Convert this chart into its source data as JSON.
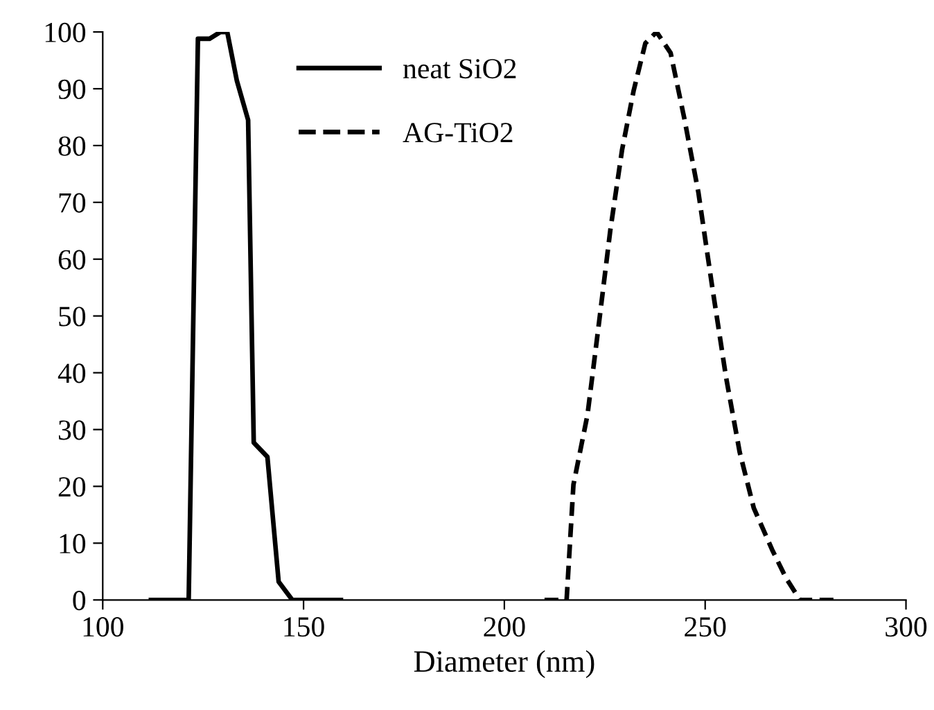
{
  "chart_data": {
    "type": "line",
    "xlabel": "Diameter (nm)",
    "xlim": [
      100,
      300
    ],
    "xticks": [
      100,
      150,
      200,
      250,
      300
    ],
    "ylim": [
      0,
      100
    ],
    "yticks": [
      0,
      10,
      20,
      30,
      40,
      50,
      60,
      70,
      80,
      90,
      100
    ],
    "grid": false,
    "legend": "top",
    "marker": "none",
    "series": [
      {
        "name": "neat SiO2",
        "color": "#000000",
        "line_style": "solid",
        "x": [
          112,
          120.7,
          121.4,
          123.7,
          126.6,
          129.3,
          131,
          133.4,
          136.2,
          137.6,
          141,
          143.8,
          147.2,
          159.3
        ],
        "values": [
          0,
          0,
          0,
          98.8,
          98.8,
          100,
          100,
          91.4,
          84.5,
          27.7,
          25.2,
          3.2,
          0,
          0
        ]
      },
      {
        "name": "AG-TiO2",
        "color": "#000000",
        "line_style": "dashed",
        "x": [
          210,
          215.5,
          217.2,
          220.7,
          223.6,
          226.4,
          229.3,
          232.2,
          235.1,
          237.9,
          241.4,
          244.8,
          248.3,
          251.7,
          255.2,
          258.6,
          262.1,
          266.7,
          270.1,
          273.6,
          282.8
        ],
        "values": [
          0,
          0,
          20.3,
          32.6,
          49,
          65.2,
          79.2,
          89.7,
          98,
          100,
          96.3,
          84.8,
          71.8,
          55.4,
          39.2,
          26,
          16.2,
          8.8,
          3.9,
          0,
          0
        ]
      }
    ]
  }
}
